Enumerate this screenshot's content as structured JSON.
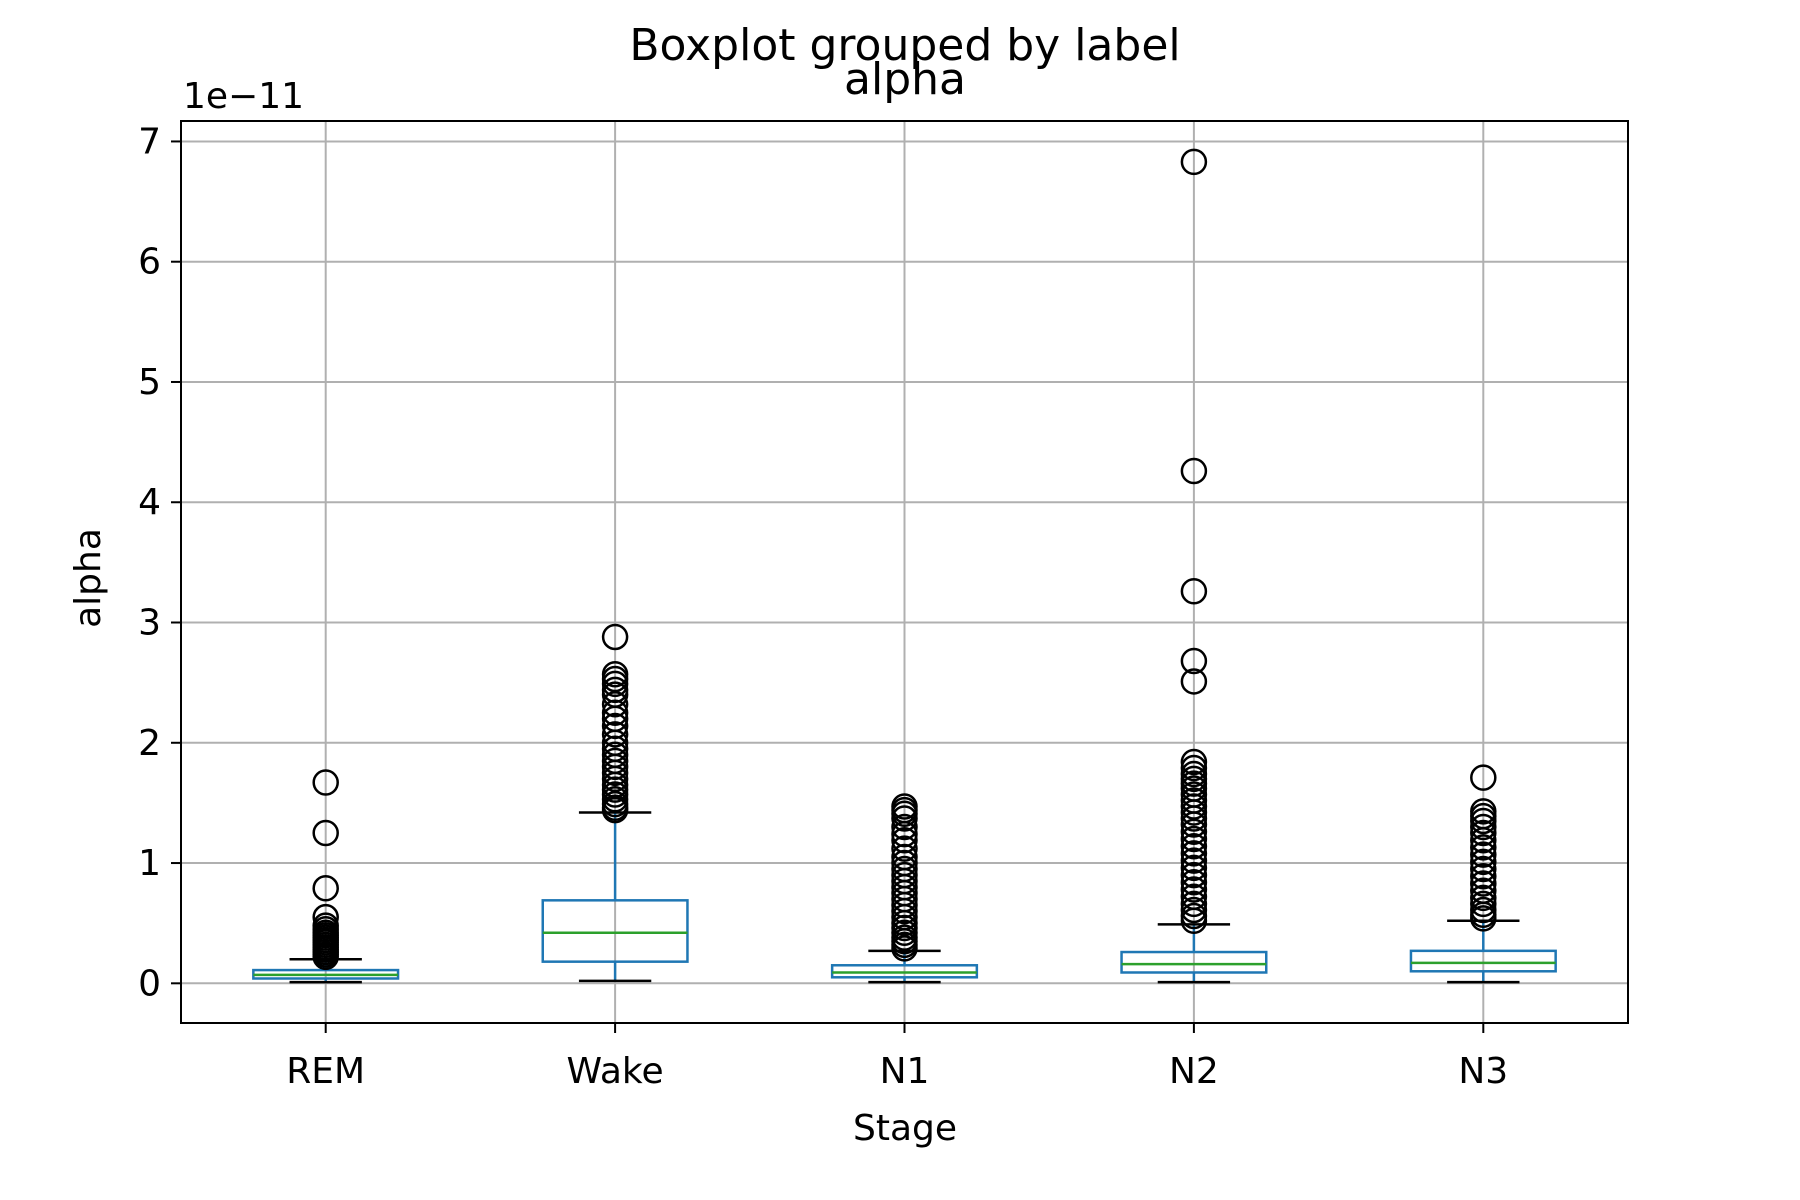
{
  "chart_data": {
    "type": "box",
    "suptitle": "Boxplot grouped by label",
    "title": "alpha",
    "xlabel": "Stage",
    "ylabel": "alpha",
    "y_offset_label": "1e−11",
    "y_scale_factor": 1e-11,
    "ylim": [
      -0.33,
      7.17
    ],
    "yticks": [
      0,
      1,
      2,
      3,
      4,
      5,
      6,
      7
    ],
    "grid": true,
    "colors": {
      "box": "#1f77b4",
      "median": "#2ca02c",
      "whisker": "#1f77b4",
      "cap": "#000000",
      "flier": "#000000",
      "grid": "#b0b0b0"
    },
    "categories": [
      "REM",
      "Wake",
      "N1",
      "N2",
      "N3"
    ],
    "boxes": [
      {
        "label": "REM",
        "whislo": 0.01,
        "q1": 0.04,
        "median": 0.07,
        "q3": 0.11,
        "whishi": 0.2,
        "fliers": [
          1.67,
          1.25,
          0.79,
          0.55,
          0.48,
          0.45,
          0.42,
          0.4,
          0.38,
          0.36,
          0.34,
          0.32,
          0.3,
          0.28,
          0.26,
          0.24,
          0.22
        ]
      },
      {
        "label": "Wake",
        "whislo": 0.02,
        "q1": 0.18,
        "median": 0.42,
        "q3": 0.69,
        "whishi": 1.42,
        "fliers": [
          2.88,
          2.57,
          2.53,
          2.49,
          2.44,
          2.4,
          2.32,
          2.25,
          2.2,
          2.14,
          2.07,
          2.0,
          1.95,
          1.9,
          1.85,
          1.8,
          1.75,
          1.7,
          1.65,
          1.61,
          1.57,
          1.53,
          1.49,
          1.46,
          1.44
        ]
      },
      {
        "label": "N1",
        "whislo": 0.01,
        "q1": 0.05,
        "median": 0.09,
        "q3": 0.15,
        "whishi": 0.27,
        "fliers": [
          1.47,
          1.44,
          1.41,
          1.37,
          1.3,
          1.24,
          1.19,
          1.12,
          1.05,
          1.0,
          0.95,
          0.9,
          0.85,
          0.8,
          0.75,
          0.7,
          0.65,
          0.6,
          0.55,
          0.5,
          0.46,
          0.42,
          0.38,
          0.35,
          0.32,
          0.29
        ]
      },
      {
        "label": "N2",
        "whislo": 0.01,
        "q1": 0.09,
        "median": 0.16,
        "q3": 0.26,
        "whishi": 0.49,
        "fliers": [
          6.83,
          4.26,
          3.26,
          2.68,
          2.51,
          1.84,
          1.79,
          1.74,
          1.7,
          1.66,
          1.62,
          1.57,
          1.52,
          1.47,
          1.42,
          1.37,
          1.32,
          1.26,
          1.2,
          1.14,
          1.08,
          1.02,
          0.96,
          0.9,
          0.84,
          0.78,
          0.72,
          0.66,
          0.61,
          0.56,
          0.52
        ]
      },
      {
        "label": "N3",
        "whislo": 0.01,
        "q1": 0.1,
        "median": 0.17,
        "q3": 0.27,
        "whishi": 0.52,
        "fliers": [
          1.71,
          1.43,
          1.39,
          1.35,
          1.3,
          1.25,
          1.19,
          1.13,
          1.07,
          1.01,
          0.95,
          0.89,
          0.83,
          0.77,
          0.71,
          0.66,
          0.61,
          0.57,
          0.54
        ]
      }
    ]
  }
}
